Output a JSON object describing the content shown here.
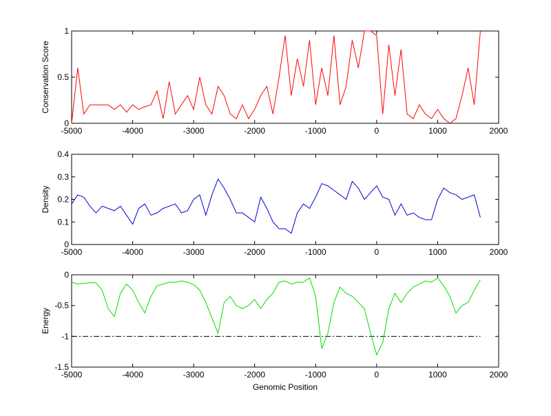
{
  "chart_data": [
    {
      "type": "line",
      "ylabel": "Conservation Score",
      "color": "#ff0000",
      "x": [
        -5000,
        -4900,
        -4800,
        -4700,
        -4600,
        -4500,
        -4400,
        -4300,
        -4200,
        -4100,
        -4000,
        -3900,
        -3800,
        -3700,
        -3600,
        -3500,
        -3400,
        -3300,
        -3200,
        -3100,
        -3000,
        -2900,
        -2800,
        -2700,
        -2600,
        -2500,
        -2400,
        -2300,
        -2200,
        -2100,
        -2000,
        -1900,
        -1800,
        -1700,
        -1600,
        -1500,
        -1400,
        -1300,
        -1200,
        -1100,
        -1000,
        -900,
        -800,
        -700,
        -600,
        -500,
        -400,
        -300,
        -200,
        -100,
        0,
        100,
        200,
        300,
        400,
        500,
        600,
        700,
        800,
        900,
        1000,
        1100,
        1200,
        1300,
        1400,
        1500,
        1600,
        1700
      ],
      "values": [
        0.0,
        0.6,
        0.1,
        0.2,
        0.2,
        0.2,
        0.2,
        0.15,
        0.2,
        0.12,
        0.2,
        0.15,
        0.18,
        0.2,
        0.35,
        0.05,
        0.45,
        0.1,
        0.2,
        0.3,
        0.15,
        0.5,
        0.2,
        0.1,
        0.4,
        0.3,
        0.1,
        0.05,
        0.2,
        0.05,
        0.15,
        0.3,
        0.4,
        0.1,
        0.5,
        0.95,
        0.3,
        0.7,
        0.4,
        0.9,
        0.2,
        0.6,
        0.3,
        0.95,
        0.2,
        0.4,
        0.9,
        0.6,
        1.0,
        1.0,
        0.95,
        0.1,
        0.85,
        0.3,
        0.8,
        0.1,
        0.05,
        0.2,
        0.1,
        0.05,
        0.15,
        0.05,
        0.0,
        0.05,
        0.3,
        0.6,
        0.2,
        1.0
      ],
      "xlim": [
        -5000,
        2000
      ],
      "xticks": [
        -5000,
        -4000,
        -3000,
        -2000,
        -1000,
        0,
        1000,
        2000
      ],
      "ylim": [
        0,
        1
      ],
      "yticks": [
        0,
        0.5,
        1
      ]
    },
    {
      "type": "line",
      "ylabel": "Density",
      "color": "#0000cc",
      "x": [
        -5000,
        -4900,
        -4800,
        -4700,
        -4600,
        -4500,
        -4400,
        -4300,
        -4200,
        -4100,
        -4000,
        -3900,
        -3800,
        -3700,
        -3600,
        -3500,
        -3400,
        -3300,
        -3200,
        -3100,
        -3000,
        -2900,
        -2800,
        -2700,
        -2600,
        -2500,
        -2400,
        -2300,
        -2200,
        -2100,
        -2000,
        -1900,
        -1800,
        -1700,
        -1600,
        -1500,
        -1400,
        -1300,
        -1200,
        -1100,
        -1000,
        -900,
        -800,
        -700,
        -600,
        -500,
        -400,
        -300,
        -200,
        -100,
        0,
        100,
        200,
        300,
        400,
        500,
        600,
        700,
        800,
        900,
        1000,
        1100,
        1200,
        1300,
        1400,
        1500,
        1600,
        1700
      ],
      "values": [
        0.18,
        0.22,
        0.21,
        0.17,
        0.14,
        0.17,
        0.16,
        0.15,
        0.17,
        0.13,
        0.09,
        0.16,
        0.18,
        0.13,
        0.14,
        0.16,
        0.17,
        0.18,
        0.14,
        0.15,
        0.2,
        0.22,
        0.13,
        0.22,
        0.29,
        0.25,
        0.2,
        0.14,
        0.14,
        0.12,
        0.1,
        0.21,
        0.16,
        0.1,
        0.07,
        0.07,
        0.05,
        0.14,
        0.18,
        0.16,
        0.21,
        0.27,
        0.26,
        0.24,
        0.22,
        0.2,
        0.28,
        0.25,
        0.2,
        0.23,
        0.26,
        0.21,
        0.2,
        0.13,
        0.18,
        0.13,
        0.14,
        0.12,
        0.11,
        0.11,
        0.2,
        0.25,
        0.23,
        0.22,
        0.2,
        0.21,
        0.22,
        0.12
      ],
      "xlim": [
        -5000,
        2000
      ],
      "xticks": [
        -5000,
        -4000,
        -3000,
        -2000,
        -1000,
        0,
        1000,
        2000
      ],
      "ylim": [
        0,
        0.4
      ],
      "yticks": [
        0,
        0.1,
        0.2,
        0.3,
        0.4
      ]
    },
    {
      "type": "line",
      "ylabel": "Energy",
      "xlabel": "Genomic Position",
      "color": "#00dd00",
      "x": [
        -5000,
        -4900,
        -4800,
        -4700,
        -4600,
        -4500,
        -4400,
        -4300,
        -4200,
        -4100,
        -4000,
        -3900,
        -3800,
        -3700,
        -3600,
        -3500,
        -3400,
        -3300,
        -3200,
        -3100,
        -3000,
        -2900,
        -2800,
        -2700,
        -2600,
        -2500,
        -2400,
        -2300,
        -2200,
        -2100,
        -2000,
        -1900,
        -1800,
        -1700,
        -1600,
        -1500,
        -1400,
        -1300,
        -1200,
        -1100,
        -1000,
        -900,
        -800,
        -700,
        -600,
        -500,
        -400,
        -300,
        -200,
        -100,
        0,
        100,
        200,
        300,
        400,
        500,
        600,
        700,
        800,
        900,
        1000,
        1100,
        1200,
        1300,
        1400,
        1500,
        1600,
        1700
      ],
      "values": [
        -0.12,
        -0.15,
        -0.14,
        -0.13,
        -0.13,
        -0.25,
        -0.55,
        -0.68,
        -0.3,
        -0.15,
        -0.25,
        -0.45,
        -0.62,
        -0.35,
        -0.18,
        -0.15,
        -0.12,
        -0.12,
        -0.1,
        -0.12,
        -0.16,
        -0.25,
        -0.45,
        -0.7,
        -0.95,
        -0.45,
        -0.35,
        -0.5,
        -0.55,
        -0.5,
        -0.4,
        -0.55,
        -0.4,
        -0.3,
        -0.12,
        -0.1,
        -0.15,
        -0.12,
        -0.12,
        -0.05,
        -0.35,
        -1.2,
        -0.95,
        -0.45,
        -0.2,
        -0.3,
        -0.35,
        -0.45,
        -0.55,
        -0.95,
        -1.3,
        -1.1,
        -0.55,
        -0.3,
        -0.45,
        -0.3,
        -0.2,
        -0.15,
        -0.1,
        -0.12,
        -0.05,
        -0.18,
        -0.35,
        -0.62,
        -0.5,
        -0.45,
        -0.25,
        -0.08
      ],
      "hline": -1,
      "xlim": [
        -5000,
        2000
      ],
      "xticks": [
        -5000,
        -4000,
        -3000,
        -2000,
        -1000,
        0,
        1000,
        2000
      ],
      "ylim": [
        -1.5,
        0
      ],
      "yticks": [
        -1.5,
        -1,
        -0.5,
        0
      ]
    }
  ]
}
